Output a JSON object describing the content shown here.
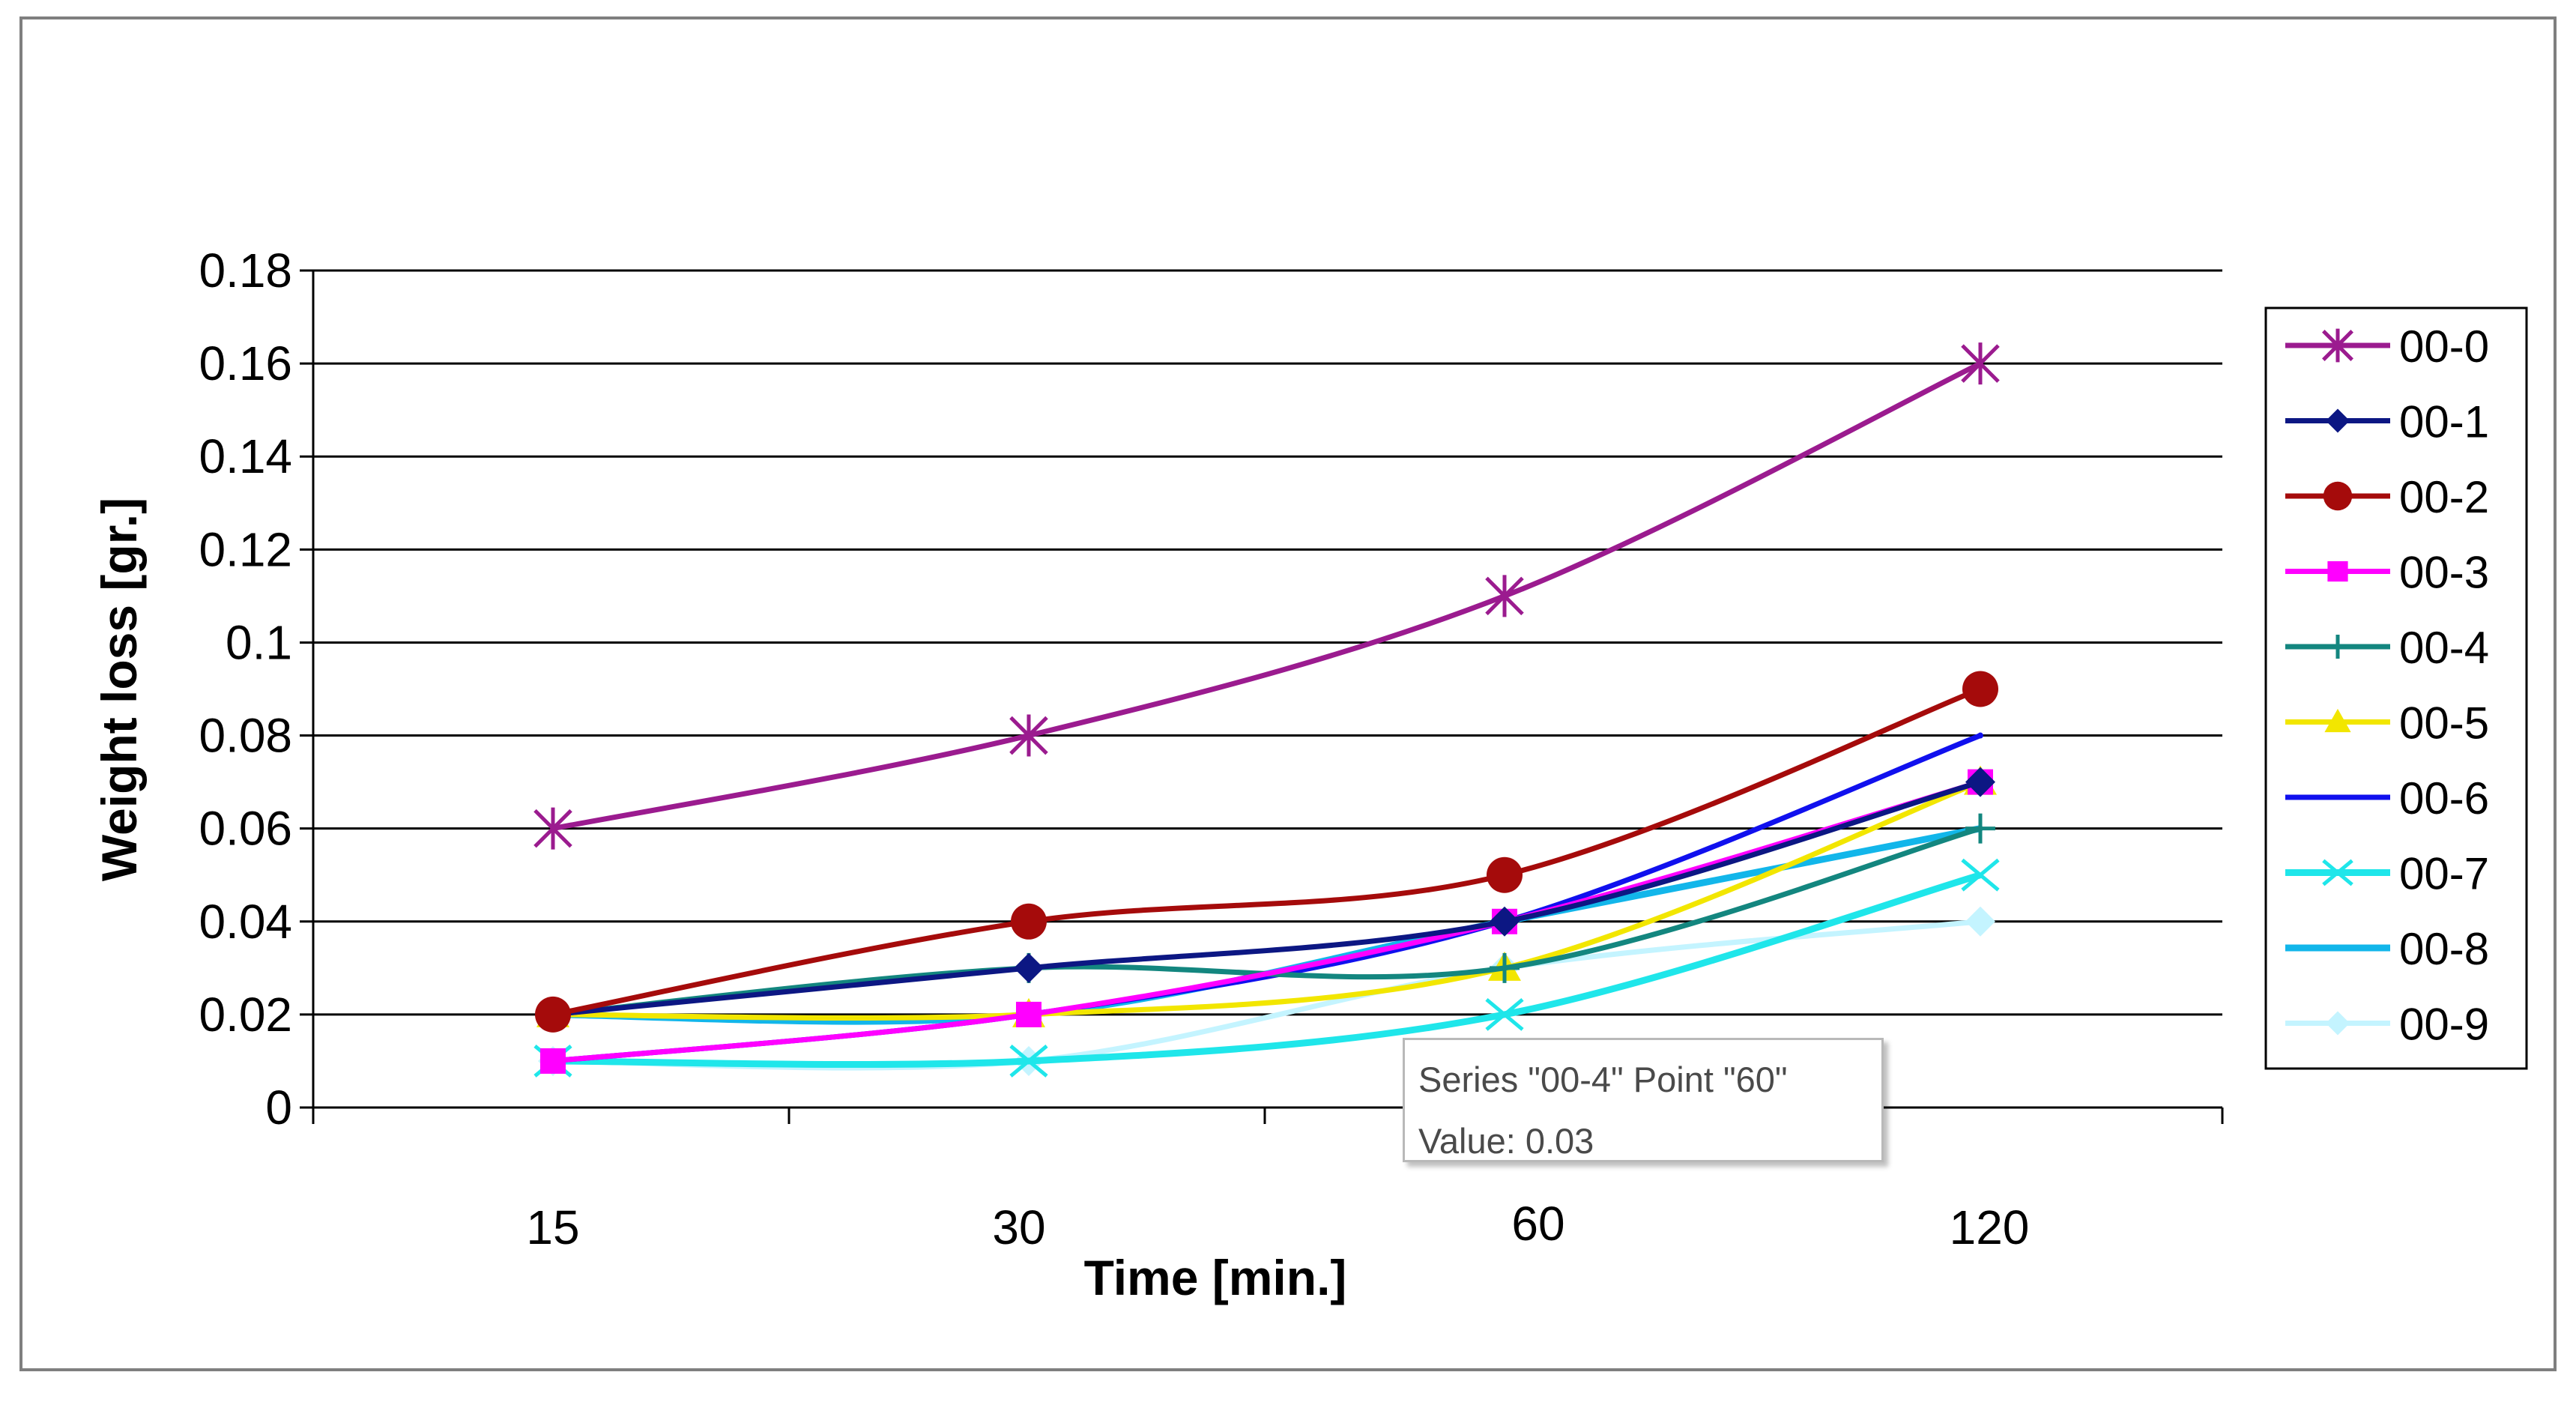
{
  "chart_data": {
    "type": "line",
    "title": "",
    "xlabel": "Time [min.]",
    "ylabel": "Weight loss [gr.]",
    "categories": [
      "15",
      "30",
      "60",
      "120"
    ],
    "ylim": [
      0,
      0.18
    ],
    "yticks": [
      "0",
      "0.02",
      "0.04",
      "0.06",
      "0.08",
      "0.1",
      "0.12",
      "0.14",
      "0.16",
      "0.18"
    ],
    "grid": true,
    "legend_position": "right",
    "series": [
      {
        "name": "00-0",
        "values": [
          0.06,
          0.08,
          0.11,
          0.16
        ],
        "color": "#9b1b8f",
        "marker": "star"
      },
      {
        "name": "00-1",
        "values": [
          0.02,
          0.03,
          0.04,
          0.07
        ],
        "color": "#0c1783",
        "marker": "diamond"
      },
      {
        "name": "00-2",
        "values": [
          0.02,
          0.04,
          0.05,
          0.09
        ],
        "color": "#a50b0b",
        "marker": "circle"
      },
      {
        "name": "00-3",
        "values": [
          0.01,
          0.02,
          0.04,
          0.07
        ],
        "color": "#ff00ff",
        "marker": "square"
      },
      {
        "name": "00-4",
        "values": [
          0.02,
          0.03,
          0.03,
          0.06
        ],
        "color": "#13867f",
        "marker": "plus"
      },
      {
        "name": "00-5",
        "values": [
          0.02,
          0.02,
          0.03,
          0.07
        ],
        "color": "#f2e600",
        "marker": "triangle"
      },
      {
        "name": "00-6",
        "values": [
          0.01,
          0.02,
          0.04,
          0.08
        ],
        "color": "#1010ee",
        "marker": "none"
      },
      {
        "name": "00-7",
        "values": [
          0.01,
          0.01,
          0.02,
          0.05
        ],
        "color": "#1fe6ea",
        "marker": "x"
      },
      {
        "name": "00-8",
        "values": [
          0.02,
          0.02,
          0.04,
          0.06
        ],
        "color": "#12b6ea",
        "marker": "none"
      },
      {
        "name": "00-9",
        "values": [
          0.01,
          0.01,
          0.03,
          0.04
        ],
        "color": "#c4f4ff",
        "marker": "diamond"
      }
    ],
    "tooltip": {
      "line1": "Series \"00-4\" Point \"60\"",
      "line2": "Value: 0.03"
    }
  }
}
